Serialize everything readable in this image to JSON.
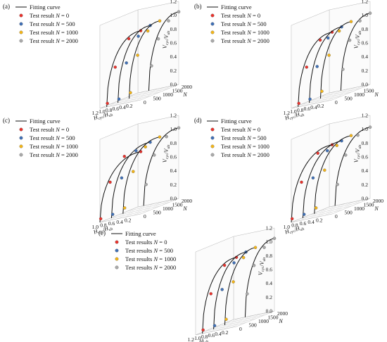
{
  "figure": {
    "panels": [
      {
        "id": "a",
        "label": "(a)",
        "legend": {
          "curve_label": "Fitting curve",
          "entries": [
            {
              "prefix": "Test result ",
              "var": "N",
              "suffix": " = 0",
              "color": "#e8322c"
            },
            {
              "prefix": "Test result ",
              "var": "N",
              "suffix": " = 500",
              "color": "#3f6fb5"
            },
            {
              "prefix": "Test result ",
              "var": "N",
              "suffix": " = 1000",
              "color": "#f2b418"
            },
            {
              "prefix": "Test result ",
              "var": "N",
              "suffix": " = 2000",
              "color": "#a9a9a9"
            }
          ]
        },
        "axes": {
          "z_label": "V_cyc/V_ult",
          "z_ticks": [
            "0.0",
            "0.2",
            "0.4",
            "0.6",
            "0.8",
            "1.0",
            "1.2"
          ],
          "x_label": "H_cyc/H_ult",
          "x_ticks": [
            "0.2",
            "0.4",
            "0.6",
            "0.8",
            "1.0",
            "1.2"
          ],
          "n_label": "N",
          "n_ticks": [
            "0",
            "500",
            "1000",
            "1500",
            "2000"
          ]
        }
      },
      {
        "id": "b",
        "label": "(b)",
        "legend": {
          "curve_label": "Fitting curve",
          "entries": [
            {
              "prefix": "Test result ",
              "var": "N",
              "suffix": " = 0",
              "color": "#e8322c"
            },
            {
              "prefix": "Test result ",
              "var": "N",
              "suffix": " = 500",
              "color": "#3f6fb5"
            },
            {
              "prefix": "Test result ",
              "var": "N",
              "suffix": " = 1000",
              "color": "#f2b418"
            },
            {
              "prefix": "Test result ",
              "var": "N",
              "suffix": " = 2000",
              "color": "#a9a9a9"
            }
          ]
        },
        "axes": {
          "z_label": "V_cyc/V_ult",
          "z_ticks": [
            "0.0",
            "0.2",
            "0.4",
            "0.6",
            "0.8",
            "1.0",
            "1.2"
          ],
          "x_label": "H_cyc/H_ult",
          "x_ticks": [
            "0.2",
            "0.4",
            "0.6",
            "0.8",
            "1.0",
            "1.2"
          ],
          "n_label": "N",
          "n_ticks": [
            "0",
            "500",
            "1000",
            "1500"
          ]
        }
      },
      {
        "id": "c",
        "label": "(c)",
        "legend": {
          "curve_label": "Fitting curve",
          "entries": [
            {
              "prefix": "Test result ",
              "var": "N",
              "suffix": " = 0",
              "color": "#e8322c"
            },
            {
              "prefix": "Test result ",
              "var": "N",
              "suffix": " = 500",
              "color": "#3f6fb5"
            },
            {
              "prefix": "Test result ",
              "var": "N",
              "suffix": " = 1000",
              "color": "#f2b418"
            },
            {
              "prefix": "Test result ",
              "var": "N",
              "suffix": " = 2000",
              "color": "#a9a9a9"
            }
          ]
        },
        "axes": {
          "z_label": "V_cyc/V_ult",
          "z_ticks": [
            "0.0",
            "0.2",
            "0.4",
            "0.6",
            "0.8",
            "1.0",
            "1.2"
          ],
          "x_label": "H_cyc/H_ult",
          "x_ticks": [
            "0.2",
            "0.4",
            "0.6",
            "0.8",
            "1.0"
          ],
          "n_label": "N",
          "n_ticks": [
            "0",
            "500",
            "1000",
            "1500",
            "2000"
          ]
        }
      },
      {
        "id": "d",
        "label": "(d)",
        "legend": {
          "curve_label": "Fitting curve",
          "entries": [
            {
              "prefix": "Test result ",
              "var": "N",
              "suffix": " = 0",
              "color": "#e8322c"
            },
            {
              "prefix": "Test result ",
              "var": "N",
              "suffix": " = 500",
              "color": "#3f6fb5"
            },
            {
              "prefix": "Test result ",
              "var": "N",
              "suffix": " = 1000",
              "color": "#f2b418"
            },
            {
              "prefix": "Test result ",
              "var": "N",
              "suffix": " = 2000",
              "color": "#a9a9a9"
            }
          ]
        },
        "axes": {
          "z_label": "V_cyc/V_ult",
          "z_ticks": [
            "0.0",
            "0.2",
            "0.4",
            "0.6",
            "0.8",
            "1.0",
            "1.2"
          ],
          "x_label": "H_cyc/H_ult",
          "x_ticks": [
            "0.2",
            "0.4",
            "0.6",
            "0.8",
            "1.0"
          ],
          "n_label": "N",
          "n_ticks": [
            "0",
            "500",
            "1000",
            "1500",
            "2000"
          ]
        }
      },
      {
        "id": "e",
        "label": "(e)",
        "legend": {
          "curve_label": "Fitting curve",
          "entries": [
            {
              "prefix": "Test results ",
              "var": "N",
              "suffix": " = 0",
              "color": "#e8322c"
            },
            {
              "prefix": "Test results ",
              "var": "N",
              "suffix": " = 500",
              "color": "#3f6fb5"
            },
            {
              "prefix": "Test results ",
              "var": "N",
              "suffix": " = 1000",
              "color": "#f2b418"
            },
            {
              "prefix": "Test results ",
              "var": "N",
              "suffix": " = 2000",
              "color": "#a9a9a9"
            }
          ]
        },
        "axes": {
          "z_label": "V_cyc/V_ult",
          "z_ticks": [
            "0.0",
            "0.2",
            "0.4",
            "0.6",
            "0.8",
            "1.0",
            "1.2"
          ],
          "x_label": "H_cyc/H_ult",
          "x_ticks": [
            "0.2",
            "0.4",
            "0.6",
            "0.8",
            "1.0",
            "1.2"
          ],
          "n_label": "N",
          "n_ticks": [
            "0",
            "500",
            "1000",
            "1500",
            "2000"
          ]
        }
      }
    ]
  },
  "chart_data": [
    {
      "panel": "(a)",
      "type": "line",
      "xlabel": "H_cyc/H_ult",
      "ylabel": "V_cyc/V_ult",
      "zlabel": "N",
      "xlim": [
        0,
        1.2
      ],
      "ylim": [
        0,
        1.2
      ],
      "zlim": [
        0,
        2000
      ],
      "grid": true,
      "series": [
        {
          "name": "Test result N = 0",
          "N": 0,
          "color": "#e8322c",
          "curve_end": 1.0,
          "points": [
            {
              "x": 0.0,
              "y": 1.0
            },
            {
              "x": 0.35,
              "y": 0.92
            },
            {
              "x": 0.75,
              "y": 0.55
            },
            {
              "x": 0.98,
              "y": 0.05
            }
          ]
        },
        {
          "name": "Test result N = 500",
          "N": 500,
          "color": "#3f6fb5",
          "curve_end": 0.95,
          "points": [
            {
              "x": 0.0,
              "y": 1.02
            },
            {
              "x": 0.35,
              "y": 0.9
            },
            {
              "x": 0.7,
              "y": 0.55
            },
            {
              "x": 0.92,
              "y": 0.05
            }
          ]
        },
        {
          "name": "Test result N = 1000",
          "N": 1000,
          "color": "#f2b418",
          "curve_end": 0.9,
          "points": [
            {
              "x": 0.0,
              "y": 1.03
            },
            {
              "x": 0.35,
              "y": 0.92
            },
            {
              "x": 0.65,
              "y": 0.6
            },
            {
              "x": 0.86,
              "y": 0.08
            }
          ]
        },
        {
          "name": "Test result N = 2000",
          "N": 2000,
          "color": "#a9a9a9",
          "curve_end": 0.88,
          "points": [
            {
              "x": 0.0,
              "y": 1.05
            },
            {
              "x": 0.3,
              "y": 0.95
            },
            {
              "x": 0.6,
              "y": 0.72
            },
            {
              "x": 0.8,
              "y": 0.35
            }
          ]
        }
      ]
    },
    {
      "panel": "(b)",
      "type": "line",
      "xlabel": "H_cyc/H_ult",
      "ylabel": "V_cyc/V_ult",
      "zlabel": "N",
      "xlim": [
        0,
        1.2
      ],
      "ylim": [
        0,
        1.2
      ],
      "zlim": [
        0,
        2000
      ],
      "grid": true,
      "series": [
        {
          "name": "Test result N = 0",
          "N": 0,
          "color": "#e8322c",
          "curve_end": 1.0,
          "points": [
            {
              "x": 0.0,
              "y": 0.98
            },
            {
              "x": 0.35,
              "y": 0.9
            },
            {
              "x": 0.75,
              "y": 0.55
            },
            {
              "x": 0.98,
              "y": 0.05
            }
          ]
        },
        {
          "name": "Test result N = 500",
          "N": 500,
          "color": "#3f6fb5",
          "curve_end": 0.95,
          "points": [
            {
              "x": 0.0,
              "y": 1.0
            },
            {
              "x": 0.4,
              "y": 0.88
            },
            {
              "x": 0.72,
              "y": 0.5
            },
            {
              "x": 0.93,
              "y": 0.05
            }
          ]
        },
        {
          "name": "Test result N = 1000",
          "N": 1000,
          "color": "#f2b418",
          "curve_end": 0.9,
          "points": [
            {
              "x": 0.0,
              "y": 1.02
            },
            {
              "x": 0.35,
              "y": 0.92
            },
            {
              "x": 0.65,
              "y": 0.6
            },
            {
              "x": 0.86,
              "y": 0.1
            }
          ]
        },
        {
          "name": "Test result N = 2000",
          "N": 2000,
          "color": "#a9a9a9",
          "curve_end": 0.86,
          "points": [
            {
              "x": 0.0,
              "y": 1.03
            },
            {
              "x": 0.3,
              "y": 0.95
            },
            {
              "x": 0.6,
              "y": 0.7
            },
            {
              "x": 0.8,
              "y": 0.3
            }
          ]
        }
      ]
    },
    {
      "panel": "(c)",
      "type": "line",
      "xlabel": "H_cyc/H_ult",
      "ylabel": "V_cyc/V_ult",
      "zlabel": "N",
      "xlim": [
        0,
        1.0
      ],
      "ylim": [
        0,
        1.2
      ],
      "zlim": [
        0,
        2000
      ],
      "grid": true,
      "series": [
        {
          "name": "Test result N = 0",
          "N": 0,
          "color": "#e8322c",
          "curve_end": 1.0,
          "points": [
            {
              "x": 0.0,
              "y": 0.9
            },
            {
              "x": 0.4,
              "y": 0.88
            },
            {
              "x": 0.75,
              "y": 0.55
            },
            {
              "x": 0.98,
              "y": 0.05
            }
          ]
        },
        {
          "name": "Test result N = 500",
          "N": 500,
          "color": "#3f6fb5",
          "curve_end": 0.95,
          "points": [
            {
              "x": 0.0,
              "y": 0.98
            },
            {
              "x": 0.35,
              "y": 0.9
            },
            {
              "x": 0.7,
              "y": 0.55
            },
            {
              "x": 0.92,
              "y": 0.05
            }
          ]
        },
        {
          "name": "Test result N = 1000",
          "N": 1000,
          "color": "#f2b418",
          "curve_end": 0.9,
          "points": [
            {
              "x": 0.0,
              "y": 1.0
            },
            {
              "x": 0.35,
              "y": 0.9
            },
            {
              "x": 0.65,
              "y": 0.58
            },
            {
              "x": 0.86,
              "y": 0.08
            }
          ]
        },
        {
          "name": "Test result N = 2000",
          "N": 2000,
          "color": "#a9a9a9",
          "curve_end": 0.86,
          "points": [
            {
              "x": 0.0,
              "y": 1.02
            },
            {
              "x": 0.3,
              "y": 0.93
            },
            {
              "x": 0.6,
              "y": 0.7
            },
            {
              "x": 0.8,
              "y": 0.3
            }
          ]
        }
      ]
    },
    {
      "panel": "(d)",
      "type": "line",
      "xlabel": "H_cyc/H_ult",
      "ylabel": "V_cyc/V_ult",
      "zlabel": "N",
      "xlim": [
        0,
        1.0
      ],
      "ylim": [
        0,
        1.2
      ],
      "zlim": [
        0,
        2000
      ],
      "grid": true,
      "series": [
        {
          "name": "Test result N = 0",
          "N": 0,
          "color": "#e8322c",
          "curve_end": 1.0,
          "points": [
            {
              "x": 0.0,
              "y": 1.0
            },
            {
              "x": 0.35,
              "y": 0.92
            },
            {
              "x": 0.75,
              "y": 0.55
            },
            {
              "x": 0.98,
              "y": 0.05
            }
          ]
        },
        {
          "name": "Test result N = 500",
          "N": 500,
          "color": "#3f6fb5",
          "curve_end": 0.95,
          "points": [
            {
              "x": 0.0,
              "y": 1.0
            },
            {
              "x": 0.35,
              "y": 0.9
            },
            {
              "x": 0.7,
              "y": 0.55
            },
            {
              "x": 0.92,
              "y": 0.05
            }
          ]
        },
        {
          "name": "Test result N = 1000",
          "N": 1000,
          "color": "#f2b418",
          "curve_end": 0.9,
          "points": [
            {
              "x": 0.0,
              "y": 1.02
            },
            {
              "x": 0.35,
              "y": 0.92
            },
            {
              "x": 0.65,
              "y": 0.6
            },
            {
              "x": 0.86,
              "y": 0.08
            }
          ]
        },
        {
          "name": "Test result N = 2000",
          "N": 2000,
          "color": "#a9a9a9",
          "curve_end": 0.86,
          "points": [
            {
              "x": 0.0,
              "y": 1.03
            },
            {
              "x": 0.3,
              "y": 0.95
            },
            {
              "x": 0.6,
              "y": 0.7
            },
            {
              "x": 0.8,
              "y": 0.3
            }
          ]
        }
      ]
    },
    {
      "panel": "(e)",
      "type": "line",
      "xlabel": "H_cyc/H_ult",
      "ylabel": "V_cyc/V_ult",
      "zlabel": "N",
      "xlim": [
        0,
        1.2
      ],
      "ylim": [
        0,
        1.2
      ],
      "zlim": [
        0,
        2000
      ],
      "grid": true,
      "series": [
        {
          "name": "Test results N = 0",
          "N": 0,
          "color": "#e8322c",
          "curve_end": 1.0,
          "points": [
            {
              "x": 0.0,
              "y": 1.0
            },
            {
              "x": 0.35,
              "y": 0.92
            },
            {
              "x": 0.75,
              "y": 0.55
            },
            {
              "x": 0.98,
              "y": 0.05
            }
          ]
        },
        {
          "name": "Test results N = 500",
          "N": 500,
          "color": "#3f6fb5",
          "curve_end": 0.95,
          "points": [
            {
              "x": 0.0,
              "y": 1.02
            },
            {
              "x": 0.35,
              "y": 0.9
            },
            {
              "x": 0.7,
              "y": 0.55
            },
            {
              "x": 0.92,
              "y": 0.05
            }
          ]
        },
        {
          "name": "Test results N = 1000",
          "N": 1000,
          "color": "#f2b418",
          "curve_end": 0.9,
          "points": [
            {
              "x": 0.0,
              "y": 1.03
            },
            {
              "x": 0.35,
              "y": 0.92
            },
            {
              "x": 0.65,
              "y": 0.6
            },
            {
              "x": 0.86,
              "y": 0.08
            }
          ]
        },
        {
          "name": "Test results N = 2000",
          "N": 2000,
          "color": "#a9a9a9",
          "curve_end": 0.86,
          "points": [
            {
              "x": 0.0,
              "y": 1.05
            },
            {
              "x": 0.3,
              "y": 0.95
            },
            {
              "x": 0.6,
              "y": 0.72
            },
            {
              "x": 0.8,
              "y": 0.33
            }
          ]
        }
      ]
    }
  ]
}
